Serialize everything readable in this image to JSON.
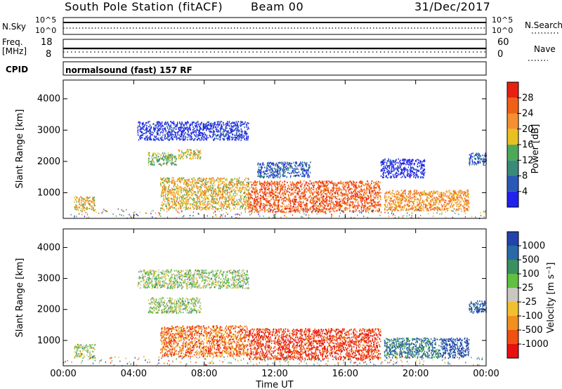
{
  "header": {
    "station": "South Pole Station (fitACF)",
    "beam": "Beam 00",
    "date": "31/Dec/2017"
  },
  "strips": {
    "nsky_label": "N.Sky",
    "nsky_ticks": [
      "10^5",
      "10^0"
    ],
    "nsearch_label": "N.Search",
    "nsearch_ticks": [
      "10^5",
      "10^0"
    ],
    "freq_label": "Freq.",
    "freq_unit": "[MHz]",
    "freq_ticks": [
      "18",
      "8"
    ],
    "nave_label": "Nave",
    "nave_ticks": [
      "60",
      "0"
    ],
    "cpid_label": "CPID",
    "cpid_text": "normalsound (fast) 157 RF"
  },
  "chart_data": [
    {
      "type": "heatmap",
      "name": "power",
      "ylabel": "Slant Range [km]",
      "xlabel": "",
      "yticks": [
        1000,
        2000,
        3000,
        4000
      ],
      "ylim": [
        180,
        4600
      ],
      "xlim_hours": [
        0,
        24
      ],
      "colorbar_label": "Power [dB]",
      "colorbar_ticks": [
        "4",
        "8",
        "12",
        "16",
        "20",
        "24",
        "28"
      ],
      "colorbar_colors": [
        "#2222ee",
        "#2a58b8",
        "#3a8a7a",
        "#4fa85a",
        "#e8c020",
        "#f59030",
        "#f06018",
        "#e82010"
      ],
      "echo_regions": [
        {
          "t0": 0.6,
          "t1": 1.8,
          "r0": 450,
          "r1": 900,
          "level": 0.6
        },
        {
          "t0": 4.8,
          "t1": 6.4,
          "r0": 1900,
          "r1": 2300,
          "level": 0.45
        },
        {
          "t0": 6.5,
          "t1": 7.8,
          "r0": 2100,
          "r1": 2400,
          "level": 0.55
        },
        {
          "t0": 4.2,
          "t1": 10.5,
          "r0": 2700,
          "r1": 3300,
          "level": 0.08
        },
        {
          "t0": 5.5,
          "t1": 10.5,
          "r0": 500,
          "r1": 1500,
          "level": 0.6
        },
        {
          "t0": 10.5,
          "t1": 18.0,
          "r0": 400,
          "r1": 1400,
          "level": 0.82
        },
        {
          "t0": 11.0,
          "t1": 14.0,
          "r0": 1500,
          "r1": 2000,
          "level": 0.2
        },
        {
          "t0": 18.2,
          "t1": 23.0,
          "r0": 450,
          "r1": 1100,
          "level": 0.7
        },
        {
          "t0": 18.0,
          "t1": 20.5,
          "r0": 1500,
          "r1": 2100,
          "level": 0.05
        },
        {
          "t0": 23.0,
          "t1": 24.0,
          "r0": 1900,
          "r1": 2300,
          "level": 0.2
        }
      ]
    },
    {
      "type": "heatmap",
      "name": "velocity",
      "ylabel": "Slant Range [km]",
      "xlabel": "Time UT",
      "xticks": [
        "00:00",
        "04:00",
        "08:00",
        "12:00",
        "16:00",
        "20:00",
        "00:00"
      ],
      "yticks": [
        1000,
        2000,
        3000,
        4000
      ],
      "ylim": [
        180,
        4600
      ],
      "xlim_hours": [
        0,
        24
      ],
      "colorbar_label": "Velocity [m s⁻¹]",
      "colorbar_ticks": [
        "1000",
        "500",
        "100",
        "25",
        "-25",
        "-100",
        "-500",
        "-1000"
      ],
      "colorbar_colors": [
        "#2244aa",
        "#2a68a8",
        "#3a9060",
        "#60c040",
        "#c8c8c0",
        "#f0c030",
        "#f09020",
        "#f05010",
        "#e81010"
      ],
      "echo_regions": [
        {
          "t0": 0.6,
          "t1": 1.8,
          "r0": 450,
          "r1": 900,
          "level": 0.45
        },
        {
          "t0": 4.8,
          "t1": 7.8,
          "r0": 1900,
          "r1": 2400,
          "level": 0.45
        },
        {
          "t0": 4.2,
          "t1": 10.5,
          "r0": 2700,
          "r1": 3300,
          "level": 0.45
        },
        {
          "t0": 5.5,
          "t1": 10.5,
          "r0": 500,
          "r1": 1500,
          "level": 0.78
        },
        {
          "t0": 10.5,
          "t1": 18.0,
          "r0": 400,
          "r1": 1400,
          "level": 0.9
        },
        {
          "t0": 18.2,
          "t1": 21.5,
          "r0": 450,
          "r1": 1100,
          "level": 0.2
        },
        {
          "t0": 21.5,
          "t1": 23.0,
          "r0": 450,
          "r1": 1100,
          "level": 0.05
        },
        {
          "t0": 23.0,
          "t1": 24.0,
          "r0": 1900,
          "r1": 2300,
          "level": 0.1
        }
      ]
    }
  ]
}
